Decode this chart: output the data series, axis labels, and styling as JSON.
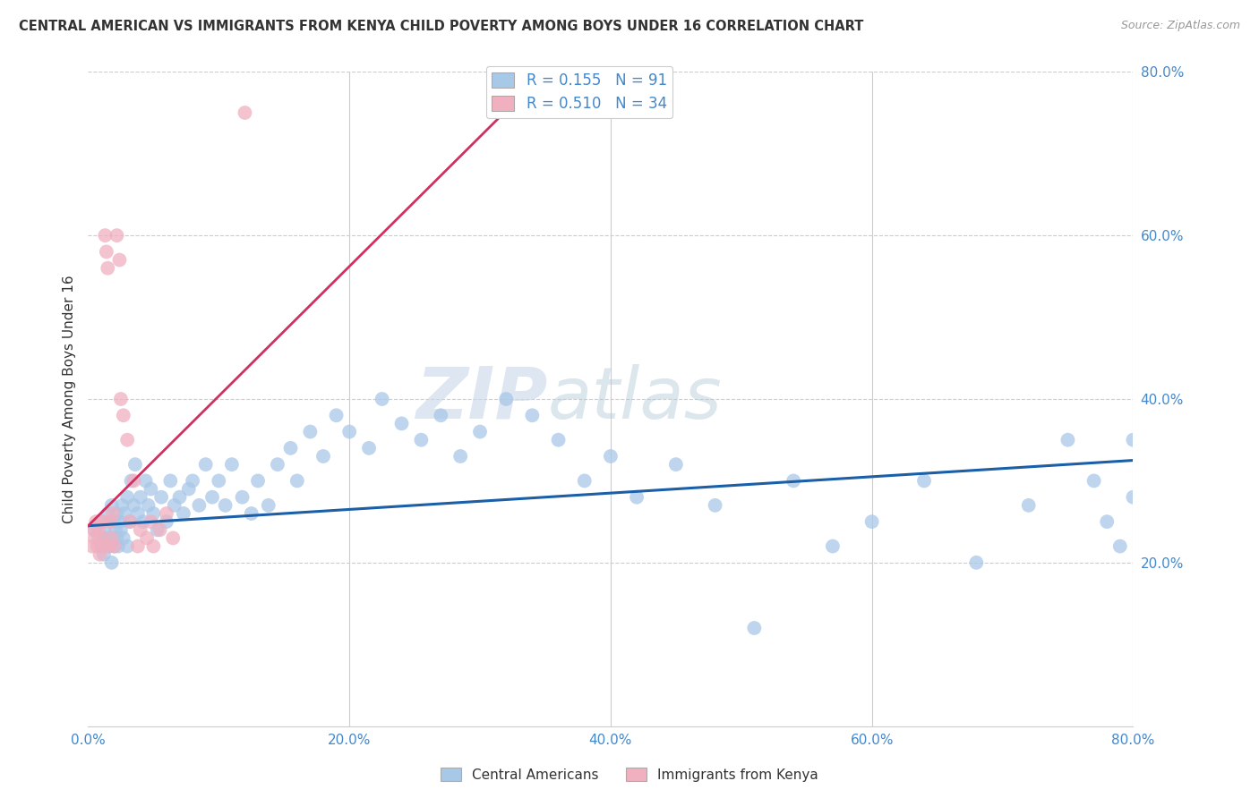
{
  "title": "CENTRAL AMERICAN VS IMMIGRANTS FROM KENYA CHILD POVERTY AMONG BOYS UNDER 16 CORRELATION CHART",
  "source": "Source: ZipAtlas.com",
  "ylabel": "Child Poverty Among Boys Under 16",
  "xlim": [
    0.0,
    0.8
  ],
  "ylim": [
    0.0,
    0.8
  ],
  "xticks": [
    0.0,
    0.2,
    0.4,
    0.6,
    0.8
  ],
  "yticks": [
    0.2,
    0.4,
    0.6,
    0.8
  ],
  "xticklabels": [
    "0.0%",
    "20.0%",
    "40.0%",
    "60.0%",
    "80.0%"
  ],
  "yticklabels": [
    "20.0%",
    "40.0%",
    "60.0%",
    "80.0%"
  ],
  "blue_R": "0.155",
  "blue_N": "91",
  "pink_R": "0.510",
  "pink_N": "34",
  "blue_color": "#a8c8e8",
  "pink_color": "#f0b0c0",
  "blue_line_color": "#1a5fa8",
  "pink_line_color": "#d03060",
  "legend_label_blue": "Central Americans",
  "legend_label_pink": "Immigrants from Kenya",
  "watermark_zip": "ZIP",
  "watermark_atlas": "atlas",
  "background_color": "#ffffff",
  "blue_line_x0": 0.0,
  "blue_line_y0": 0.245,
  "blue_line_x1": 0.8,
  "blue_line_y1": 0.325,
  "pink_line_x0": 0.0,
  "pink_line_y0": 0.245,
  "pink_line_x1": 0.35,
  "pink_line_y1": 0.8,
  "blue_scatter_x": [
    0.005,
    0.008,
    0.01,
    0.01,
    0.012,
    0.013,
    0.014,
    0.015,
    0.016,
    0.017,
    0.018,
    0.018,
    0.019,
    0.02,
    0.02,
    0.021,
    0.022,
    0.022,
    0.023,
    0.024,
    0.025,
    0.026,
    0.027,
    0.028,
    0.03,
    0.03,
    0.032,
    0.033,
    0.035,
    0.036,
    0.038,
    0.04,
    0.042,
    0.044,
    0.046,
    0.048,
    0.05,
    0.053,
    0.056,
    0.06,
    0.063,
    0.066,
    0.07,
    0.073,
    0.077,
    0.08,
    0.085,
    0.09,
    0.095,
    0.1,
    0.105,
    0.11,
    0.118,
    0.125,
    0.13,
    0.138,
    0.145,
    0.155,
    0.16,
    0.17,
    0.18,
    0.19,
    0.2,
    0.215,
    0.225,
    0.24,
    0.255,
    0.27,
    0.285,
    0.3,
    0.32,
    0.34,
    0.36,
    0.38,
    0.4,
    0.42,
    0.45,
    0.48,
    0.51,
    0.54,
    0.57,
    0.6,
    0.64,
    0.68,
    0.72,
    0.75,
    0.77,
    0.78,
    0.79,
    0.8,
    0.8
  ],
  "blue_scatter_y": [
    0.24,
    0.23,
    0.22,
    0.25,
    0.21,
    0.24,
    0.23,
    0.26,
    0.22,
    0.25,
    0.2,
    0.27,
    0.23,
    0.22,
    0.25,
    0.24,
    0.23,
    0.26,
    0.22,
    0.25,
    0.24,
    0.27,
    0.23,
    0.26,
    0.22,
    0.28,
    0.25,
    0.3,
    0.27,
    0.32,
    0.26,
    0.28,
    0.25,
    0.3,
    0.27,
    0.29,
    0.26,
    0.24,
    0.28,
    0.25,
    0.3,
    0.27,
    0.28,
    0.26,
    0.29,
    0.3,
    0.27,
    0.32,
    0.28,
    0.3,
    0.27,
    0.32,
    0.28,
    0.26,
    0.3,
    0.27,
    0.32,
    0.34,
    0.3,
    0.36,
    0.33,
    0.38,
    0.36,
    0.34,
    0.4,
    0.37,
    0.35,
    0.38,
    0.33,
    0.36,
    0.4,
    0.38,
    0.35,
    0.3,
    0.33,
    0.28,
    0.32,
    0.27,
    0.12,
    0.3,
    0.22,
    0.25,
    0.3,
    0.2,
    0.27,
    0.35,
    0.3,
    0.25,
    0.22,
    0.35,
    0.28
  ],
  "pink_scatter_x": [
    0.003,
    0.004,
    0.005,
    0.006,
    0.007,
    0.008,
    0.009,
    0.01,
    0.011,
    0.012,
    0.013,
    0.014,
    0.015,
    0.016,
    0.017,
    0.018,
    0.019,
    0.02,
    0.022,
    0.024,
    0.025,
    0.027,
    0.03,
    0.032,
    0.035,
    0.038,
    0.04,
    0.045,
    0.048,
    0.05,
    0.055,
    0.06,
    0.065,
    0.12
  ],
  "pink_scatter_y": [
    0.22,
    0.24,
    0.23,
    0.25,
    0.22,
    0.24,
    0.21,
    0.23,
    0.25,
    0.22,
    0.6,
    0.58,
    0.56,
    0.22,
    0.25,
    0.23,
    0.26,
    0.22,
    0.6,
    0.57,
    0.4,
    0.38,
    0.35,
    0.25,
    0.3,
    0.22,
    0.24,
    0.23,
    0.25,
    0.22,
    0.24,
    0.26,
    0.23,
    0.75
  ]
}
